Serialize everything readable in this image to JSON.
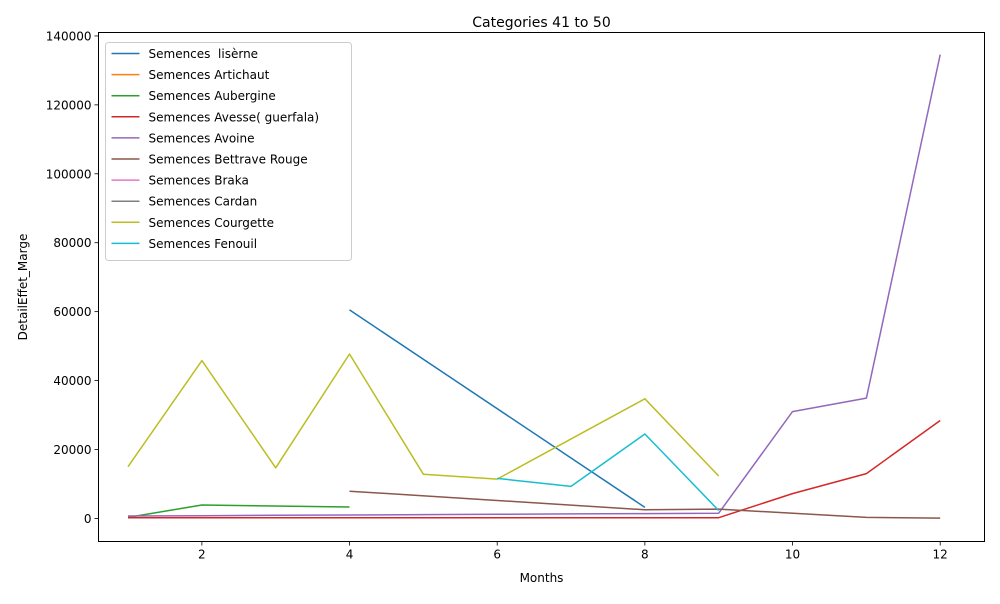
{
  "chart_data": {
    "type": "line",
    "title": "Categories 41 to 50",
    "xlabel": "Months",
    "ylabel": "DetailEffet_Marge",
    "xlim": [
      0.6,
      12.6
    ],
    "ylim": [
      -6700,
      141000
    ],
    "xticks": [
      2,
      4,
      6,
      8,
      10,
      12
    ],
    "yticks": [
      0,
      20000,
      40000,
      60000,
      80000,
      100000,
      120000,
      140000
    ],
    "grid": false,
    "legend_position": "upper-left",
    "series": [
      {
        "name": "Semences  lisèrne",
        "color": "#1f77b4",
        "x": [
          4,
          8
        ],
        "y": [
          60500,
          3200
        ]
      },
      {
        "name": "Semences Artichaut",
        "color": "#ff7f0e",
        "x": [],
        "y": []
      },
      {
        "name": "Semences Aubergine",
        "color": "#2ca02c",
        "x": [
          1,
          2,
          4
        ],
        "y": [
          300,
          3900,
          3300
        ]
      },
      {
        "name": "Semences Avesse( guerfala)",
        "color": "#d62728",
        "x": [
          1,
          2,
          3,
          4,
          5,
          6,
          7,
          8,
          9,
          10,
          11,
          12
        ],
        "y": [
          200,
          200,
          200,
          200,
          200,
          200,
          200,
          200,
          200,
          7200,
          13000,
          28400
        ]
      },
      {
        "name": "Semences Avoine",
        "color": "#9467bd",
        "x": [
          1,
          2,
          3,
          4,
          5,
          6,
          7,
          8,
          9,
          10,
          11,
          12
        ],
        "y": [
          700,
          800,
          900,
          1000,
          1100,
          1200,
          1300,
          1400,
          1500,
          31000,
          34900,
          134600
        ]
      },
      {
        "name": "Semences Bettrave Rouge",
        "color": "#8c564b",
        "x": [
          4,
          8,
          9,
          11,
          12
        ],
        "y": [
          7900,
          2500,
          2700,
          300,
          100
        ]
      },
      {
        "name": "Semences Braka",
        "color": "#e377c2",
        "x": [],
        "y": []
      },
      {
        "name": "Semences Cardan",
        "color": "#7f7f7f",
        "x": [],
        "y": []
      },
      {
        "name": "Semences Courgette",
        "color": "#bcbd22",
        "x": [
          1,
          2,
          3,
          4,
          5,
          6,
          8,
          9
        ],
        "y": [
          15000,
          45800,
          14700,
          47700,
          12800,
          11400,
          34700,
          12300
        ]
      },
      {
        "name": "Semences Fenouil",
        "color": "#17becf",
        "x": [
          6,
          7,
          8,
          9
        ],
        "y": [
          11600,
          9300,
          24500,
          2300
        ]
      }
    ]
  }
}
